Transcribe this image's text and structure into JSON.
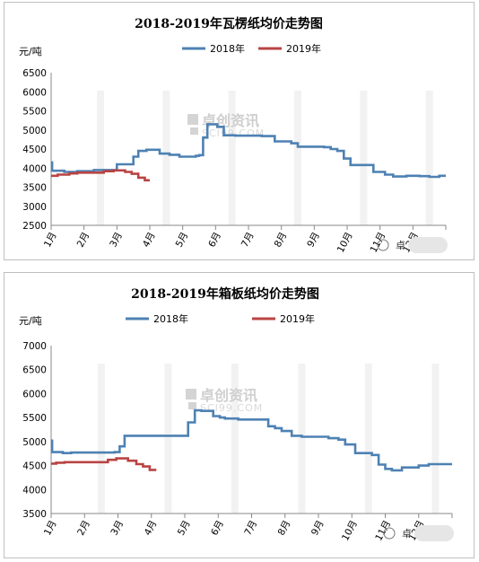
{
  "colors": {
    "s2018": "#4e81b3",
    "s2019": "#b94443",
    "axis": "#888888",
    "tick": "#9a9a9a"
  },
  "watermark": {
    "brand": "卓创资讯",
    "site": "SCI99.COM"
  },
  "badge_text": "卓",
  "chart_data": [
    {
      "type": "line",
      "title": "2018-2019年瓦楞纸均价走势图",
      "ylabel": "元/吨",
      "ylim": [
        2500,
        6500
      ],
      "yticks": [
        "6500",
        "6000",
        "5500",
        "5000",
        "4500",
        "4000",
        "3500",
        "3000",
        "2500"
      ],
      "xlim": [
        0,
        12
      ],
      "xticks": [
        "1月",
        "2月",
        "3月",
        "4月",
        "5月",
        "6月",
        "7月",
        "8月",
        "9月",
        "10月",
        "11月",
        "12月"
      ],
      "legend": "top-center",
      "series": [
        {
          "name": "2018年",
          "x": [
            0,
            0.03,
            0.03,
            0.4,
            0.4,
            0.8,
            0.8,
            1.3,
            1.3,
            2.0,
            2.0,
            2.5,
            2.5,
            2.65,
            2.65,
            2.9,
            2.9,
            3.3,
            3.3,
            3.6,
            3.6,
            3.9,
            3.9,
            4.4,
            4.4,
            4.5,
            4.5,
            4.62,
            4.62,
            4.75,
            4.75,
            5.05,
            5.05,
            5.25,
            5.25,
            5.6,
            5.6,
            6.4,
            6.4,
            6.8,
            6.8,
            7.3,
            7.3,
            7.5,
            7.5,
            8.3,
            8.3,
            8.5,
            8.5,
            8.7,
            8.7,
            8.9,
            8.9,
            9.1,
            9.1,
            9.8,
            9.8,
            10.15,
            10.15,
            10.4,
            10.4,
            10.8,
            10.8,
            11.2,
            11.2,
            11.5,
            11.5,
            11.8,
            11.8,
            12.0
          ],
          "y": [
            4150,
            4150,
            3930,
            3930,
            3900,
            3900,
            3920,
            3920,
            3950,
            3950,
            4100,
            4100,
            4300,
            4300,
            4450,
            4450,
            4480,
            4480,
            4380,
            4380,
            4350,
            4350,
            4300,
            4300,
            4320,
            4320,
            4340,
            4340,
            4800,
            4800,
            5150,
            5150,
            5080,
            5080,
            4860,
            4860,
            4850,
            4850,
            4840,
            4840,
            4700,
            4700,
            4650,
            4650,
            4560,
            4560,
            4550,
            4550,
            4500,
            4500,
            4450,
            4450,
            4250,
            4250,
            4080,
            4080,
            3900,
            3900,
            3830,
            3830,
            3780,
            3780,
            3800,
            3800,
            3790,
            3790,
            3770,
            3770,
            3800,
            3800
          ]
        },
        {
          "name": "2019年",
          "x": [
            0,
            0.2,
            0.2,
            0.55,
            0.55,
            0.8,
            0.8,
            1.6,
            1.6,
            1.9,
            1.9,
            2.25,
            2.25,
            2.45,
            2.45,
            2.65,
            2.65,
            2.85,
            2.85,
            3.0
          ],
          "y": [
            3800,
            3800,
            3830,
            3830,
            3860,
            3860,
            3880,
            3880,
            3920,
            3920,
            3940,
            3940,
            3900,
            3900,
            3850,
            3850,
            3750,
            3750,
            3680,
            3680
          ]
        }
      ]
    },
    {
      "type": "line",
      "title": "2018-2019年箱板纸均价走势图",
      "ylabel": "元/吨",
      "ylim": [
        3500,
        7000
      ],
      "yticks": [
        "7000",
        "6500",
        "6000",
        "5500",
        "5000",
        "4500",
        "4000",
        "3500"
      ],
      "xlim": [
        0,
        12
      ],
      "xticks": [
        "1月",
        "2月",
        "3月",
        "4月",
        "5月",
        "6月",
        "7月",
        "8月",
        "9月",
        "10月",
        "11月",
        "12月"
      ],
      "legend": "top-center",
      "series": [
        {
          "name": "2018年",
          "x": [
            0,
            0.03,
            0.03,
            0.35,
            0.35,
            0.6,
            0.6,
            1.9,
            1.9,
            2.05,
            2.05,
            2.2,
            2.2,
            4.1,
            4.1,
            4.3,
            4.3,
            4.5,
            4.5,
            4.85,
            4.85,
            5.05,
            5.05,
            5.2,
            5.2,
            5.6,
            5.6,
            6.5,
            6.5,
            6.7,
            6.7,
            6.9,
            6.9,
            7.2,
            7.2,
            7.5,
            7.5,
            8.3,
            8.3,
            8.6,
            8.6,
            8.8,
            8.8,
            9.1,
            9.1,
            9.6,
            9.6,
            9.8,
            9.8,
            10.0,
            10.0,
            10.2,
            10.2,
            10.5,
            10.5,
            11.0,
            11.0,
            11.3,
            11.3,
            12.0
          ],
          "y": [
            5020,
            5020,
            4780,
            4780,
            4760,
            4760,
            4770,
            4770,
            4780,
            4780,
            4900,
            4900,
            5120,
            5120,
            5400,
            5400,
            5650,
            5650,
            5640,
            5640,
            5530,
            5530,
            5500,
            5500,
            5480,
            5480,
            5460,
            5460,
            5320,
            5320,
            5280,
            5280,
            5220,
            5220,
            5120,
            5120,
            5100,
            5100,
            5070,
            5070,
            5040,
            5040,
            4940,
            4940,
            4760,
            4760,
            4720,
            4720,
            4520,
            4520,
            4430,
            4430,
            4400,
            4400,
            4460,
            4460,
            4500,
            4500,
            4530,
            4530
          ]
        },
        {
          "name": "2019年",
          "x": [
            0,
            0.15,
            0.15,
            0.4,
            0.4,
            1.7,
            1.7,
            1.95,
            1.95,
            2.3,
            2.3,
            2.55,
            2.55,
            2.75,
            2.75,
            2.95,
            2.95,
            3.15
          ],
          "y": [
            4540,
            4540,
            4560,
            4560,
            4570,
            4570,
            4620,
            4620,
            4650,
            4650,
            4600,
            4600,
            4530,
            4530,
            4480,
            4480,
            4410,
            4410
          ]
        }
      ]
    }
  ]
}
